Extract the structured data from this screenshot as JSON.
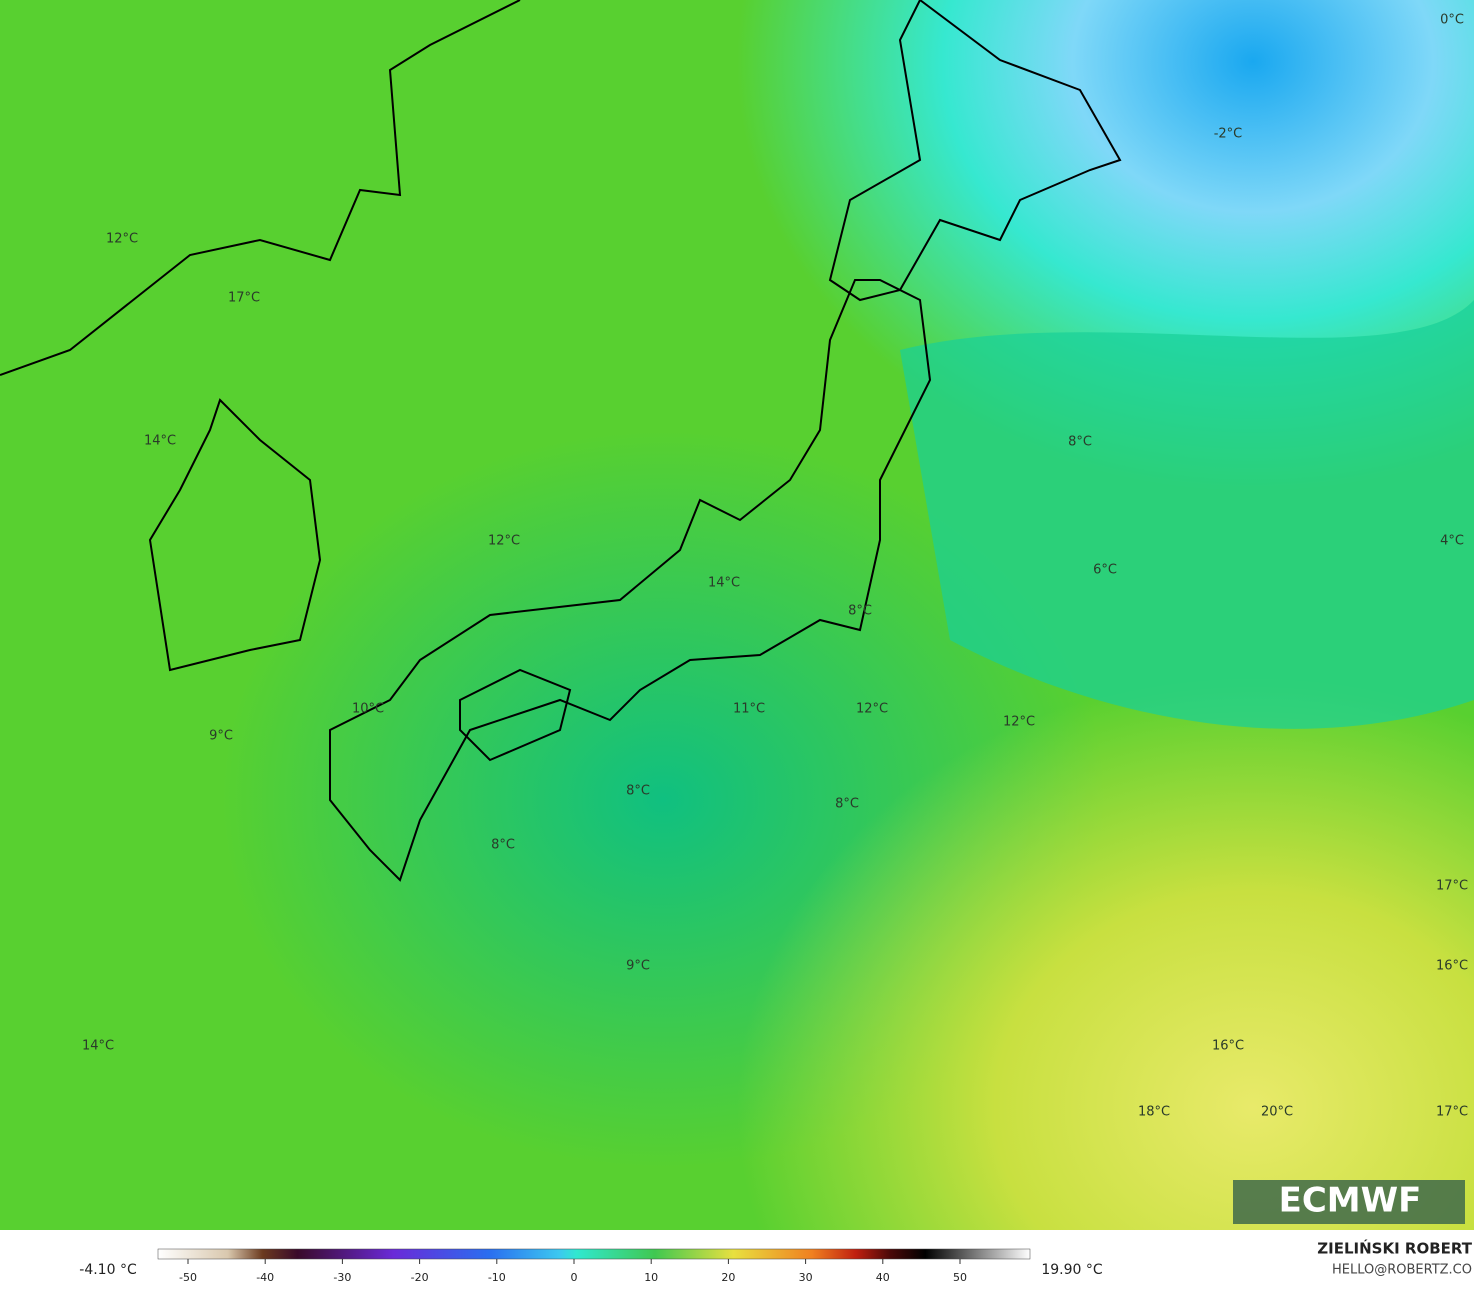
{
  "map": {
    "labels": [
      "0°C",
      "-2°C",
      "12°C",
      "17°C",
      "14°C",
      "8°C",
      "12°C",
      "4°C",
      "6°C",
      "14°C",
      "8°C",
      "10°C",
      "11°C",
      "12°C",
      "12°C",
      "9°C",
      "8°C",
      "8°C",
      "8°C",
      "17°C",
      "9°C",
      "16°C",
      "14°C",
      "16°C",
      "18°C",
      "20°C",
      "17°C"
    ],
    "logo": "ECMWF"
  },
  "colorbar": {
    "min_label": "-4.10 °C",
    "max_label": "19.90 °C",
    "ticks": [
      -50,
      -40,
      -30,
      -20,
      -10,
      0,
      10,
      20,
      30,
      40,
      50
    ]
  },
  "credit": {
    "author": "ZIELIŃSKI ROBERT",
    "email": "HELLO@ROBERTZ.CO"
  }
}
